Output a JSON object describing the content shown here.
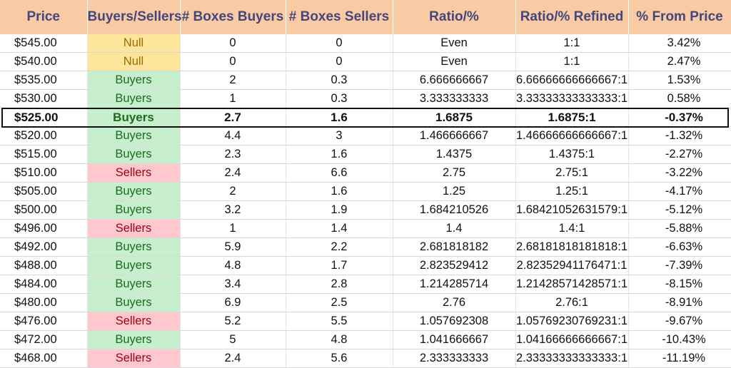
{
  "headers": [
    "Price",
    "Buyers/Sellers",
    "# Boxes Buyers",
    "# Boxes Sellers",
    "Ratio/%",
    "Ratio/% Refined",
    "% From Price"
  ],
  "highlight_row_index": 4,
  "colors": {
    "header_bg": "#f8cba4",
    "header_text": "#44477c",
    "null_bg": "#fde69b",
    "buyers_bg": "#c7eecd",
    "sellers_bg": "#ffc7ce"
  },
  "rows": [
    {
      "price": "$545.00",
      "side": "Null",
      "side_class": "null",
      "buyers": "0",
      "sellers": "0",
      "ratio": "Even",
      "refined": "1:1",
      "from_price": "3.42%"
    },
    {
      "price": "$540.00",
      "side": "Null",
      "side_class": "null",
      "buyers": "0",
      "sellers": "0",
      "ratio": "Even",
      "refined": "1:1",
      "from_price": "2.47%"
    },
    {
      "price": "$535.00",
      "side": "Buyers",
      "side_class": "buyers",
      "buyers": "2",
      "sellers": "0.3",
      "ratio": "6.666666667",
      "refined": "6.66666666666667:1",
      "from_price": "1.53%"
    },
    {
      "price": "$530.00",
      "side": "Buyers",
      "side_class": "buyers",
      "buyers": "1",
      "sellers": "0.3",
      "ratio": "3.333333333",
      "refined": "3.33333333333333:1",
      "from_price": "0.58%"
    },
    {
      "price": "$525.00",
      "side": "Buyers",
      "side_class": "buyers",
      "buyers": "2.7",
      "sellers": "1.6",
      "ratio": "1.6875",
      "refined": "1.6875:1",
      "from_price": "-0.37%"
    },
    {
      "price": "$520.00",
      "side": "Buyers",
      "side_class": "buyers",
      "buyers": "4.4",
      "sellers": "3",
      "ratio": "1.466666667",
      "refined": "1.46666666666667:1",
      "from_price": "-1.32%"
    },
    {
      "price": "$515.00",
      "side": "Buyers",
      "side_class": "buyers",
      "buyers": "2.3",
      "sellers": "1.6",
      "ratio": "1.4375",
      "refined": "1.4375:1",
      "from_price": "-2.27%"
    },
    {
      "price": "$510.00",
      "side": "Sellers",
      "side_class": "sellers",
      "buyers": "2.4",
      "sellers": "6.6",
      "ratio": "2.75",
      "refined": "2.75:1",
      "from_price": "-3.22%"
    },
    {
      "price": "$505.00",
      "side": "Buyers",
      "side_class": "buyers",
      "buyers": "2",
      "sellers": "1.6",
      "ratio": "1.25",
      "refined": "1.25:1",
      "from_price": "-4.17%"
    },
    {
      "price": "$500.00",
      "side": "Buyers",
      "side_class": "buyers",
      "buyers": "3.2",
      "sellers": "1.9",
      "ratio": "1.684210526",
      "refined": "1.68421052631579:1",
      "from_price": "-5.12%"
    },
    {
      "price": "$496.00",
      "side": "Sellers",
      "side_class": "sellers",
      "buyers": "1",
      "sellers": "1.4",
      "ratio": "1.4",
      "refined": "1.4:1",
      "from_price": "-5.88%"
    },
    {
      "price": "$492.00",
      "side": "Buyers",
      "side_class": "buyers",
      "buyers": "5.9",
      "sellers": "2.2",
      "ratio": "2.681818182",
      "refined": "2.68181818181818:1",
      "from_price": "-6.63%"
    },
    {
      "price": "$488.00",
      "side": "Buyers",
      "side_class": "buyers",
      "buyers": "4.8",
      "sellers": "1.7",
      "ratio": "2.823529412",
      "refined": "2.82352941176471:1",
      "from_price": "-7.39%"
    },
    {
      "price": "$484.00",
      "side": "Buyers",
      "side_class": "buyers",
      "buyers": "3.4",
      "sellers": "2.8",
      "ratio": "1.214285714",
      "refined": "1.21428571428571:1",
      "from_price": "-8.15%"
    },
    {
      "price": "$480.00",
      "side": "Buyers",
      "side_class": "buyers",
      "buyers": "6.9",
      "sellers": "2.5",
      "ratio": "2.76",
      "refined": "2.76:1",
      "from_price": "-8.91%"
    },
    {
      "price": "$476.00",
      "side": "Sellers",
      "side_class": "sellers",
      "buyers": "5.2",
      "sellers": "5.5",
      "ratio": "1.057692308",
      "refined": "1.05769230769231:1",
      "from_price": "-9.67%"
    },
    {
      "price": "$472.00",
      "side": "Buyers",
      "side_class": "buyers",
      "buyers": "5",
      "sellers": "4.8",
      "ratio": "1.041666667",
      "refined": "1.04166666666667:1",
      "from_price": "-10.43%"
    },
    {
      "price": "$468.00",
      "side": "Sellers",
      "side_class": "sellers",
      "buyers": "2.4",
      "sellers": "5.6",
      "ratio": "2.333333333",
      "refined": "2.33333333333333:1",
      "from_price": "-11.19%"
    }
  ]
}
